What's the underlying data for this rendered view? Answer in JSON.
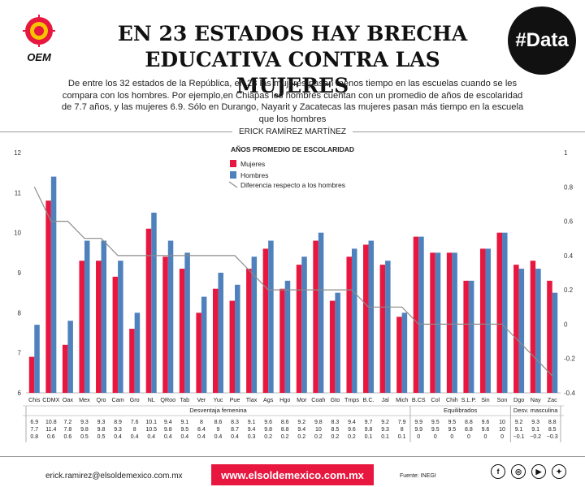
{
  "header": {
    "logo_text": "OEM",
    "title_line1": "EN 23 ESTADOS HAY BRECHA",
    "title_line2": "EDUCATIVA CONTRA LAS MUJERES",
    "badge": "#Data",
    "intro": "De entre los 32 estados de la República, en 23 las mujeres pasan menos tiempo en las escuelas cuando se les compara con los hombres. Por ejemplo,en Chiapas los hombres cuentan con un promedio de años de escolaridad de 7.7 años, y las mujeres 6.9. Sólo en Durango, Nayarit y Zacatecas las mujeres pasan más tiempo en la escuela que los hombres",
    "author": "ERICK RAMÍREZ MARTÍNEZ"
  },
  "footer": {
    "email": "erick.ramirez@elsoldemexico.com.mx",
    "site": "www.elsoldemexico.com.mx",
    "source": "Fuente: INEGI",
    "social_icons": [
      "facebook-icon",
      "instagram-icon",
      "youtube-icon",
      "twitter-icon"
    ]
  },
  "colors": {
    "mujeres": "#e8173f",
    "hombres": "#4f81bd",
    "diferencia": "#8c8c8c"
  },
  "chart_data": {
    "type": "bar",
    "title": "AÑOS PROMEDIO DE ESCOLARIDAD",
    "categories": [
      "Chis",
      "CDMX",
      "Oax",
      "Mex",
      "Qro",
      "Cam",
      "Gro",
      "NL",
      "QRoo",
      "Tab",
      "Ver",
      "Yuc",
      "Pue",
      "Tlax",
      "Ags",
      "Hgo",
      "Mor",
      "Coah",
      "Gto",
      "Tmps",
      "B.C.",
      "Jal",
      "Mich",
      "B.CS",
      "Col",
      "Chih",
      "S.L.P.",
      "Sin",
      "Son",
      "Dgo",
      "Nay",
      "Zac"
    ],
    "series": [
      {
        "name": "Mujeres",
        "values": [
          6.9,
          10.8,
          7.2,
          9.3,
          9.3,
          8.9,
          7.6,
          10.1,
          9.4,
          9.1,
          8.0,
          8.6,
          8.3,
          9.1,
          9.6,
          8.6,
          9.2,
          9.8,
          8.3,
          9.4,
          9.7,
          9.2,
          7.9,
          9.9,
          9.5,
          9.5,
          8.8,
          9.6,
          10.0,
          9.2,
          9.3,
          8.8
        ]
      },
      {
        "name": "Hombres",
        "values": [
          7.7,
          11.4,
          7.8,
          9.8,
          9.8,
          9.3,
          8.0,
          10.5,
          9.8,
          9.5,
          8.4,
          9.0,
          8.7,
          9.4,
          9.8,
          8.8,
          9.4,
          10.0,
          8.5,
          9.6,
          9.8,
          9.3,
          8.0,
          9.9,
          9.5,
          9.5,
          8.8,
          9.6,
          10.0,
          9.1,
          9.1,
          8.5
        ]
      },
      {
        "name": "Diferencia respecto a los hombres",
        "axis": "right",
        "values": [
          0.8,
          0.6,
          0.6,
          0.5,
          0.5,
          0.4,
          0.4,
          0.4,
          0.4,
          0.4,
          0.4,
          0.4,
          0.4,
          0.3,
          0.2,
          0.2,
          0.2,
          0.2,
          0.2,
          0.2,
          0.1,
          0.1,
          0.1,
          0,
          0,
          0,
          0,
          0,
          0,
          -0.1,
          -0.2,
          -0.3
        ]
      }
    ],
    "ylim": [
      6,
      12
    ],
    "yticks": [
      6,
      7,
      8,
      9,
      10,
      11,
      12
    ],
    "y2lim": [
      -0.4,
      1
    ],
    "y2ticks": [
      -0.4,
      -0.2,
      0,
      0.2,
      0.4,
      0.6,
      0.8,
      1
    ],
    "groups": [
      {
        "label": "Desventaja femenina",
        "start": 0,
        "end": 22
      },
      {
        "label": "Equilibrados",
        "start": 23,
        "end": 28
      },
      {
        "label": "Desv. masculina",
        "start": 29,
        "end": 31
      }
    ],
    "table_rows": [
      [
        "6.9",
        "10.8",
        "7.2",
        "9.3",
        "9.3",
        "8.9",
        "7.6",
        "10.1",
        "9.4",
        "9.1",
        "8",
        "8.6",
        "8.3",
        "9.1",
        "9.6",
        "8.6",
        "9.2",
        "9.8",
        "8.3",
        "9.4",
        "9.7",
        "9.2",
        "7.9",
        "9.9",
        "9.5",
        "9.5",
        "8.8",
        "9.6",
        "10",
        "9.2",
        "9.3",
        "8.8"
      ],
      [
        "7.7",
        "11.4",
        "7.8",
        "9.8",
        "9.8",
        "9.3",
        "8",
        "10.5",
        "9.8",
        "9.5",
        "8.4",
        "9",
        "8.7",
        "9.4",
        "9.8",
        "8.8",
        "9.4",
        "10",
        "8.5",
        "9.6",
        "9.8",
        "9.3",
        "8",
        "9.9",
        "9.5",
        "9.5",
        "8.8",
        "9.6",
        "10",
        "9.1",
        "9.1",
        "8.5"
      ],
      [
        "0.8",
        "0.6",
        "0.6",
        "0.5",
        "0.5",
        "0.4",
        "0.4",
        "0.4",
        "0.4",
        "0.4",
        "0.4",
        "0.4",
        "0.4",
        "0.3",
        "0.2",
        "0.2",
        "0.2",
        "0.2",
        "0.2",
        "0.2",
        "0.1",
        "0.1",
        "0.1",
        "0",
        "0",
        "0",
        "0",
        "0",
        "0",
        "−0.1",
        "−0.2",
        "−0.3"
      ]
    ],
    "legend": "top-left"
  }
}
